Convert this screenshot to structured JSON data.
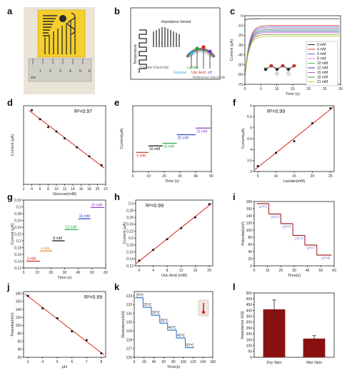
{
  "panel_labels": [
    "a",
    "b",
    "c",
    "d",
    "e",
    "f",
    "g",
    "h",
    "i",
    "j",
    "k",
    "l"
  ],
  "colors": {
    "red": "#d7261e",
    "dark_red": "#8b1111",
    "photo_bg": "#f4cf2d",
    "ruler": "#c8c8c0"
  },
  "panel_a": {
    "ruler_numbers": [
      "1",
      "2",
      "3",
      "4",
      "5",
      "6"
    ],
    "ruler_unit": "cm"
  },
  "panel_b": {
    "title": "Impedance Sensor",
    "labels": {
      "temperature": "Temperature",
      "counter": "Counter Electrode",
      "lactate": "Lactate",
      "glucose": "Glucose",
      "uric": "Uric Acid",
      "ph": "pH",
      "reference": "Reference Electrode"
    }
  },
  "chart_data": [
    {
      "id": "c",
      "type": "line",
      "xlabel": "Time (s)",
      "ylabel": "Current (µA)",
      "xlim": [
        0,
        30
      ],
      "ylim": [
        -70,
        0
      ],
      "xticks": [
        0,
        5,
        10,
        15,
        20,
        25,
        30
      ],
      "yticks": [
        0,
        -10,
        -20,
        -30,
        -40,
        -50,
        -60,
        -70
      ],
      "series": [
        {
          "name": "0 mM",
          "final": -3,
          "color": "#222222"
        },
        {
          "name": "4 mM",
          "final": -10,
          "color": "#e03a3a"
        },
        {
          "name": "6 mM",
          "final": -11.5,
          "color": "#4a6bd8"
        },
        {
          "name": "8 mM",
          "final": -13,
          "color": "#e37cd4"
        },
        {
          "name": "10 mM",
          "final": -14,
          "color": "#3fbf5a"
        },
        {
          "name": "12 mM",
          "final": -15.5,
          "color": "#2f4fa8"
        },
        {
          "name": "15 mM",
          "final": -17,
          "color": "#b05ac8"
        },
        {
          "name": "18 mM",
          "final": -19,
          "color": "#6b8a2a"
        },
        {
          "name": "21 mM",
          "final": -21,
          "color": "#c8c830"
        }
      ]
    },
    {
      "id": "d",
      "type": "scatter",
      "xlabel": "Glucose(mM)",
      "ylabel": "Current (µA)",
      "annotation": "R²=0.97",
      "xlim": [
        2,
        22
      ],
      "ylim": [
        1,
        8
      ],
      "xticks": [
        2,
        4,
        6,
        8,
        10,
        12,
        14,
        16,
        18,
        20,
        22
      ],
      "x": [
        4,
        6,
        8,
        10,
        12,
        15,
        18,
        21
      ],
      "y": [
        7.6,
        6.8,
        6.1,
        5.7,
        5.1,
        4.3,
        3.5,
        2.7
      ]
    },
    {
      "id": "e",
      "type": "line",
      "xlabel": "Time (s)",
      "ylabel": "Current(µA)",
      "xlim": [
        0,
        50
      ],
      "ylim": [
        0,
        10
      ],
      "xticks": [
        0,
        10,
        20,
        30,
        40,
        50
      ],
      "steps": [
        {
          "label": "5 mM",
          "x0": 2,
          "x1": 10,
          "y": 2.9,
          "color": "#d7261e"
        },
        {
          "label": "10 mM",
          "x0": 10,
          "x1": 19,
          "y": 3.9,
          "color": "#111111"
        },
        {
          "label": "15 mM",
          "x0": 19,
          "x1": 28,
          "y": 4.3,
          "color": "#21a33a"
        },
        {
          "label": "20 mM",
          "x0": 28,
          "x1": 40,
          "y": 5.6,
          "color": "#2a4bc8"
        },
        {
          "label": "25 mM",
          "x0": 40,
          "x1": 50,
          "y": 6.6,
          "color": "#8e3fc8"
        }
      ]
    },
    {
      "id": "f",
      "type": "scatter",
      "xlabel": "Lactate(mM)",
      "ylabel": "Current(µA)",
      "annotation": "R²=0.99",
      "xlim": [
        4,
        26
      ],
      "ylim": [
        3,
        6
      ],
      "xticks": [
        5,
        10,
        15,
        20,
        25
      ],
      "yticks": [
        3.0,
        3.5,
        4.0,
        4.5,
        5.0,
        5.5,
        6.0
      ],
      "x": [
        5,
        10,
        15,
        20,
        25
      ],
      "y": [
        3.25,
        3.85,
        4.38,
        5.2,
        5.88
      ]
    },
    {
      "id": "g",
      "type": "line",
      "xlabel": "Time (s)",
      "ylabel": "Current (µA)",
      "xlim": [
        0,
        60
      ],
      "ylim": [
        0.12,
        0.32
      ],
      "xticks": [
        0,
        10,
        20,
        30,
        40,
        50,
        60
      ],
      "yticks": [
        0.12,
        0.14,
        0.16,
        0.18,
        0.2,
        0.22,
        0.24,
        0.26,
        0.28,
        0.3,
        0.32
      ],
      "steps": [
        {
          "label": "0 mM",
          "x0": 2,
          "x1": 12,
          "y": 0.14,
          "color": "#d7261e"
        },
        {
          "label": "4 mM",
          "x0": 12,
          "x1": 21,
          "y": 0.17,
          "color": "#ef8a24"
        },
        {
          "label": "8 mM",
          "x0": 21,
          "x1": 30,
          "y": 0.2,
          "color": "#111111"
        },
        {
          "label": "12 mM",
          "x0": 30,
          "x1": 40,
          "y": 0.233,
          "color": "#21a33a"
        },
        {
          "label": "16 mM",
          "x0": 40,
          "x1": 49,
          "y": 0.265,
          "color": "#2a4bc8"
        },
        {
          "label": "20 mM",
          "x0": 49,
          "x1": 59,
          "y": 0.298,
          "color": "#8e3fc8"
        }
      ]
    },
    {
      "id": "h",
      "type": "scatter",
      "xlabel": "Uric Acid (mM)",
      "ylabel": "Current (µA)",
      "annotation": "R²=0.99",
      "xlim": [
        -1,
        21
      ],
      "ylim": [
        0.12,
        0.31
      ],
      "xticks": [
        0,
        4,
        8,
        12,
        16,
        20
      ],
      "yticks": [
        0.12,
        0.14,
        0.16,
        0.18,
        0.2,
        0.22,
        0.24,
        0.26,
        0.28,
        0.3
      ],
      "x": [
        0,
        4,
        8,
        12,
        16,
        20
      ],
      "y": [
        0.135,
        0.166,
        0.197,
        0.229,
        0.26,
        0.298
      ]
    },
    {
      "id": "i",
      "type": "line",
      "xlabel": "Time(s)",
      "ylabel": "Potential(mV)",
      "xlim": [
        0,
        60
      ],
      "ylim": [
        0,
        180
      ],
      "xticks": [
        0,
        10,
        20,
        30,
        40,
        50,
        60
      ],
      "yticks": [
        0,
        20,
        40,
        60,
        80,
        100,
        120,
        140,
        160,
        180
      ],
      "steps": [
        {
          "label": "pH=3",
          "x0": 2,
          "x1": 11,
          "y": 174
        },
        {
          "label": "pH=4",
          "x0": 11,
          "x1": 20,
          "y": 145
        },
        {
          "label": "pH=5",
          "x0": 20,
          "x1": 29,
          "y": 118
        },
        {
          "label": "pH=6",
          "x0": 29,
          "x1": 38,
          "y": 85
        },
        {
          "label": "pH=7",
          "x0": 38,
          "x1": 47,
          "y": 58
        },
        {
          "label": "pH=8",
          "x0": 47,
          "x1": 58,
          "y": 30
        }
      ]
    },
    {
      "id": "j",
      "type": "scatter",
      "xlabel": "pH",
      "ylabel": "Potential(mV)",
      "annotation": "R²=0.99",
      "xlim": [
        2.7,
        8.3
      ],
      "ylim": [
        20,
        185
      ],
      "xticks": [
        3,
        4,
        5,
        6,
        7,
        8
      ],
      "yticks": [
        20,
        40,
        60,
        80,
        100,
        120,
        140,
        160,
        180
      ],
      "x": [
        3,
        4,
        5,
        6,
        7,
        8
      ],
      "y": [
        174,
        143,
        118,
        85,
        63,
        30
      ]
    },
    {
      "id": "k",
      "type": "line",
      "xlabel": "Time(s)",
      "ylabel": "Resistance(kΩ)",
      "xlim": [
        0,
        160
      ],
      "ylim": [
        126,
        133.5
      ],
      "xticks": [
        0,
        20,
        40,
        60,
        80,
        100,
        120,
        140,
        160
      ],
      "yticks": [
        126,
        127,
        128,
        129,
        130,
        131,
        132,
        133
      ],
      "steps": [
        {
          "label": "20℃",
          "x0": 2,
          "x1": 18,
          "y": 132.8
        },
        {
          "label": "25℃",
          "x0": 18,
          "x1": 35,
          "y": 131.7
        },
        {
          "label": "30℃",
          "x0": 35,
          "x1": 52,
          "y": 130.8
        },
        {
          "label": "35℃",
          "x0": 52,
          "x1": 68,
          "y": 129.9
        },
        {
          "label": "40℃",
          "x0": 68,
          "x1": 86,
          "y": 129.1
        },
        {
          "label": "45℃",
          "x0": 86,
          "x1": 104,
          "y": 128.2
        },
        {
          "label": "50℃",
          "x0": 104,
          "x1": 122,
          "y": 127.1
        }
      ]
    },
    {
      "id": "l",
      "type": "bar",
      "ylabel": "Impedance (kΩ)",
      "categories": [
        "Dry Skin",
        "Wet Skin"
      ],
      "values": [
        410,
        160
      ],
      "errors": [
        80,
        25
      ],
      "ylim": [
        0,
        550
      ],
      "yticks": [
        0,
        50,
        100,
        150,
        200,
        250,
        300,
        350,
        400,
        450,
        500,
        550
      ]
    }
  ]
}
